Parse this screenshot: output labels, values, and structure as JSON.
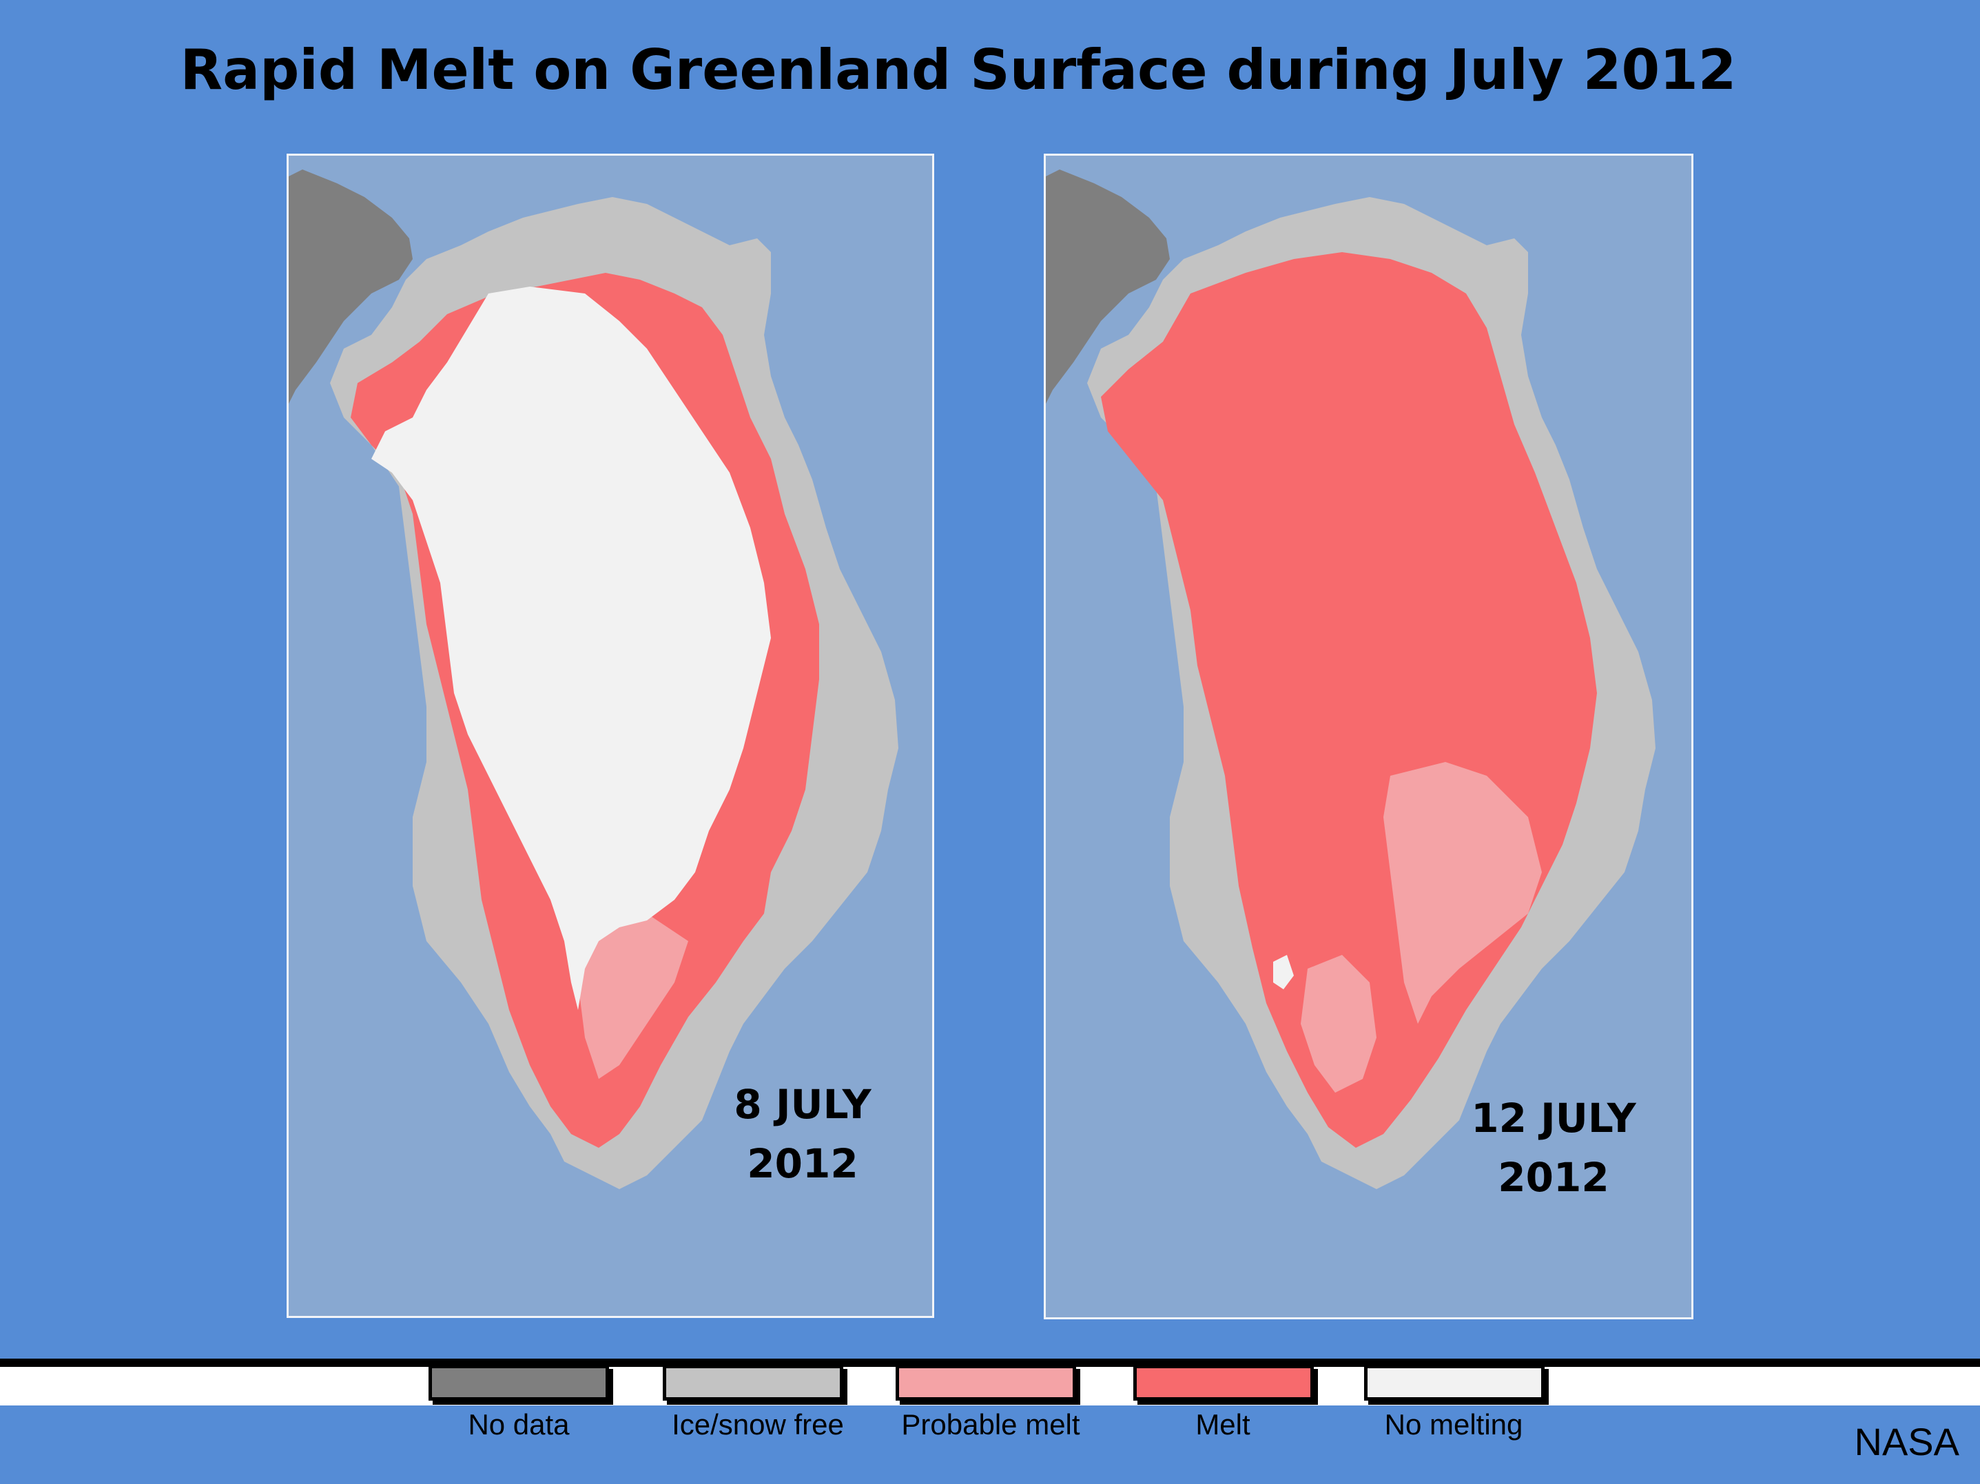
{
  "title": "Rapid Melt on Greenland Surface during July 2012",
  "panels": [
    {
      "date_line1": "8 JULY",
      "date_line2": "2012",
      "melt_extent": "partial"
    },
    {
      "date_line1": "12 JULY",
      "date_line2": "2012",
      "melt_extent": "near-total"
    }
  ],
  "legend": [
    {
      "label": "No data",
      "color": "#7f7f7f"
    },
    {
      "label": "Ice/snow free",
      "color": "#c3c3c3"
    },
    {
      "label": "Probable melt",
      "color": "#f4a3a6"
    },
    {
      "label": "Melt",
      "color": "#f76a6d"
    },
    {
      "label": "No melting",
      "color": "#f2f2f2"
    }
  ],
  "credit": "NASA",
  "colors": {
    "background": "#558cd6",
    "ocean": "#88a8d1",
    "land_no_data": "#7f7f7f",
    "ice_free": "#c3c3c3",
    "probable_melt": "#f4a3a6",
    "melt": "#f76a6d",
    "no_melting": "#f2f2f2"
  }
}
